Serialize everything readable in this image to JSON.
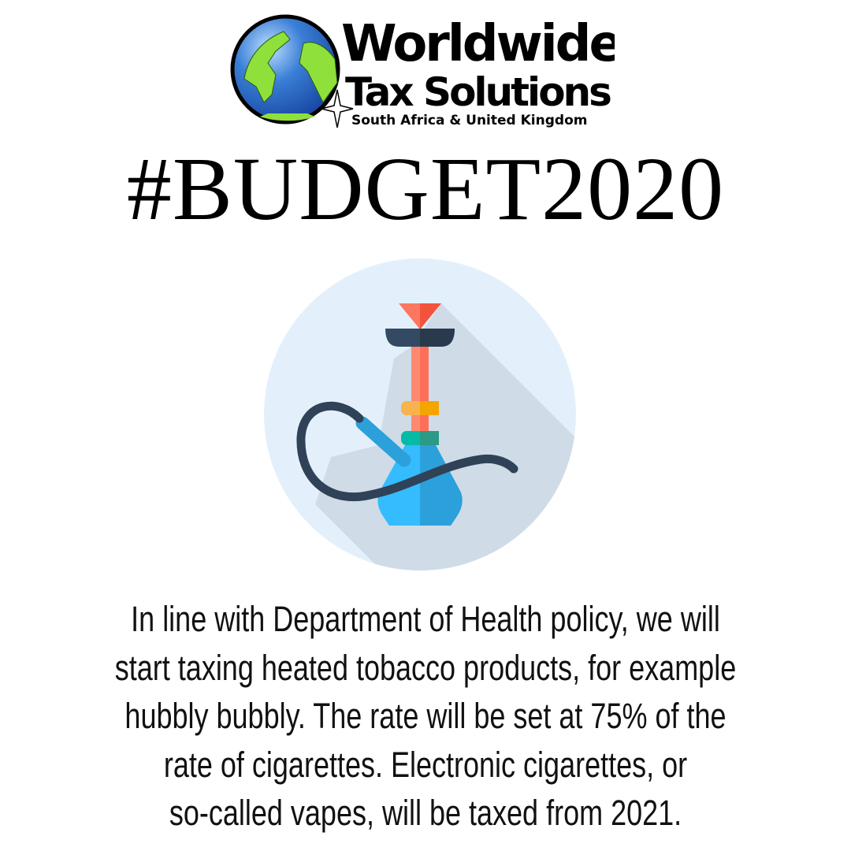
{
  "logo": {
    "line1": "Worldwide",
    "line2": "Tax Solutions",
    "line3": "South Africa & United Kingdom",
    "icon": "globe-compass-icon"
  },
  "title": "#BUDGET2020",
  "illustration": {
    "icon": "hookah-icon",
    "colors": {
      "circle": "#e3f0fc",
      "shadow": "#cfdbe6",
      "cone": "#f2603f",
      "bowl": "#2f4257",
      "stem": "#fd7760",
      "ring1": "#f4a71c",
      "ring2": "#1ab89b",
      "vase": "#35baf7",
      "hose": "#2f4257"
    }
  },
  "body": {
    "lines": [
      "In line with Department of Health policy, we will",
      "start taxing heated tobacco products, for example",
      "hubbly bubbly. The rate will be set at 75% of the",
      "rate of cigarettes. Electronic cigarettes, or",
      "so-called vapes, will be taxed from 2021."
    ]
  }
}
